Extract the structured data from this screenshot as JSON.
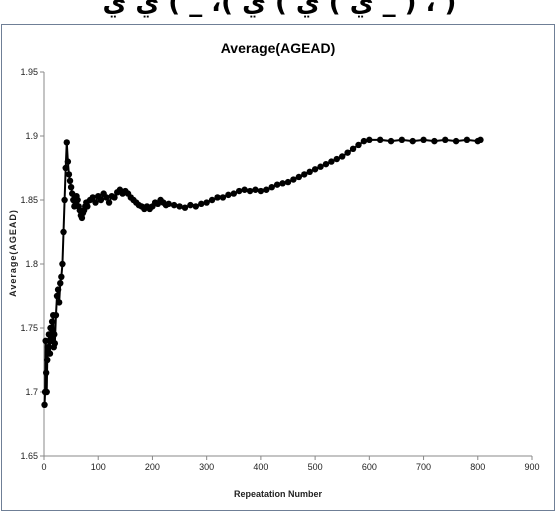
{
  "header": {
    "partial_text": "ي ) ي ) ي )، _ ) ي ي _ ) ، )"
  },
  "colors": {
    "frame_border": "#6f7f96",
    "series": "#000000",
    "axis": "#888888"
  },
  "chart_data": {
    "type": "line",
    "title": "Average(AGEAD)",
    "xlabel": "Repeatation Number",
    "ylabel": "Average(AGEAD)",
    "xlim": [
      0,
      900
    ],
    "ylim": [
      1.65,
      1.95
    ],
    "x_ticks": [
      0,
      100,
      200,
      300,
      400,
      500,
      600,
      700,
      800,
      900
    ],
    "y_ticks": [
      "1.65",
      "1.7",
      "1.75",
      "1.8",
      "1.85",
      "1.9",
      "1.95"
    ],
    "grid": false,
    "legend": "none",
    "markers": "filled-circle",
    "series": [
      {
        "x": [
          1,
          2,
          3,
          4,
          5,
          6,
          7,
          8,
          9,
          10,
          11,
          12,
          13,
          14,
          15,
          16,
          17,
          18,
          19,
          20,
          22,
          24,
          26,
          28,
          30,
          32,
          34,
          36,
          38,
          40,
          42,
          44,
          46,
          48,
          50,
          52,
          54,
          56,
          58,
          60,
          62,
          64,
          66,
          68,
          70,
          72,
          74,
          76,
          78,
          80,
          85,
          90,
          95,
          100,
          105,
          110,
          115,
          120,
          125,
          130,
          135,
          140,
          145,
          150,
          155,
          160,
          165,
          170,
          175,
          180,
          185,
          190,
          195,
          200,
          205,
          210,
          215,
          220,
          225,
          230,
          240,
          250,
          260,
          270,
          280,
          290,
          300,
          310,
          320,
          330,
          340,
          350,
          360,
          370,
          380,
          390,
          400,
          410,
          420,
          430,
          440,
          450,
          460,
          470,
          480,
          490,
          500,
          510,
          520,
          530,
          540,
          550,
          560,
          570,
          580,
          590,
          600,
          620,
          640,
          660,
          680,
          700,
          720,
          740,
          760,
          780,
          800,
          805
        ],
        "y": [
          1.69,
          1.7,
          1.74,
          1.715,
          1.7,
          1.725,
          1.735,
          1.73,
          1.745,
          1.74,
          1.73,
          1.75,
          1.74,
          1.745,
          1.755,
          1.74,
          1.76,
          1.735,
          1.745,
          1.738,
          1.76,
          1.775,
          1.78,
          1.77,
          1.785,
          1.79,
          1.8,
          1.825,
          1.85,
          1.875,
          1.895,
          1.88,
          1.87,
          1.865,
          1.86,
          1.855,
          1.85,
          1.845,
          1.848,
          1.853,
          1.85,
          1.845,
          1.842,
          1.838,
          1.836,
          1.84,
          1.842,
          1.845,
          1.848,
          1.845,
          1.85,
          1.852,
          1.848,
          1.853,
          1.85,
          1.855,
          1.852,
          1.848,
          1.853,
          1.852,
          1.856,
          1.858,
          1.855,
          1.857,
          1.855,
          1.852,
          1.85,
          1.848,
          1.846,
          1.845,
          1.843,
          1.845,
          1.843,
          1.845,
          1.848,
          1.847,
          1.85,
          1.848,
          1.846,
          1.847,
          1.846,
          1.845,
          1.844,
          1.846,
          1.845,
          1.847,
          1.848,
          1.85,
          1.852,
          1.852,
          1.854,
          1.855,
          1.857,
          1.858,
          1.857,
          1.858,
          1.857,
          1.858,
          1.86,
          1.862,
          1.863,
          1.864,
          1.866,
          1.868,
          1.87,
          1.872,
          1.874,
          1.876,
          1.878,
          1.88,
          1.882,
          1.884,
          1.887,
          1.89,
          1.893,
          1.896,
          1.897,
          1.897,
          1.896,
          1.897,
          1.896,
          1.897,
          1.896,
          1.897,
          1.896,
          1.897,
          1.896,
          1.897
        ]
      }
    ]
  }
}
